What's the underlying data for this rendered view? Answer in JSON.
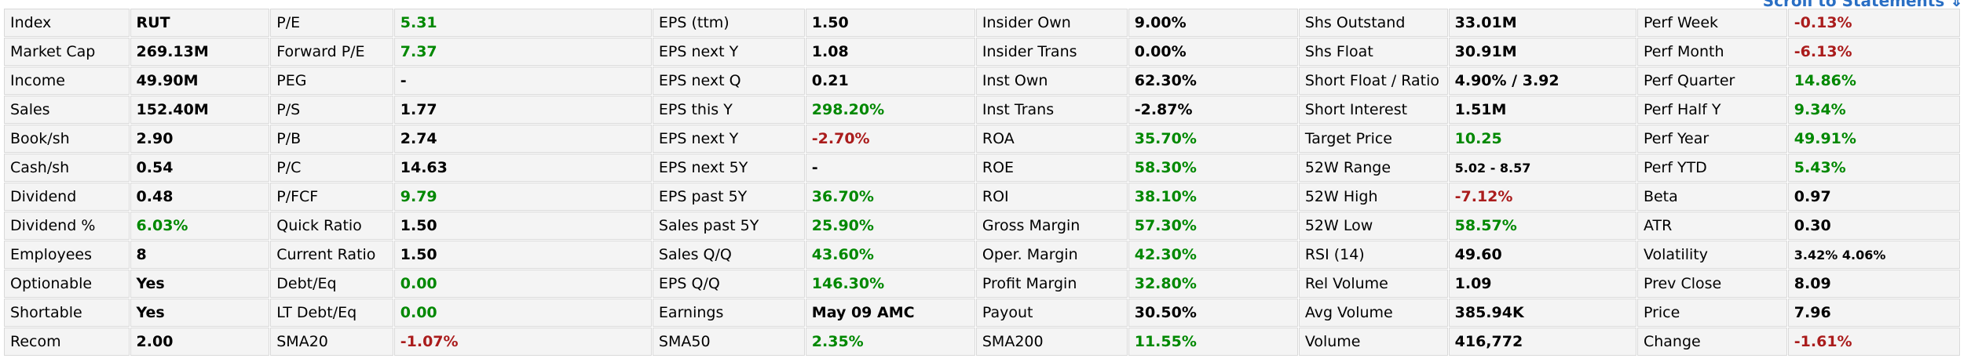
{
  "colors": {
    "default": "#000000",
    "green": "#008800",
    "red": "#aa1c1c",
    "link": "#2a6fc4"
  },
  "header": {
    "scroll_link_label": "Scroll to Statements",
    "scroll_link_icon": "⇓"
  },
  "snapshot_table": {
    "rows": [
      [
        {
          "label": "Index",
          "value": "RUT",
          "color": "default"
        },
        {
          "label": "P/E",
          "value": "5.31",
          "color": "green"
        },
        {
          "label": "EPS (ttm)",
          "value": "1.50",
          "color": "default"
        },
        {
          "label": "Insider Own",
          "value": "9.00%",
          "color": "default"
        },
        {
          "label": "Shs Outstand",
          "value": "33.01M",
          "color": "default"
        },
        {
          "label": "Perf Week",
          "value": "-0.13%",
          "color": "red"
        }
      ],
      [
        {
          "label": "Market Cap",
          "value": "269.13M",
          "color": "default"
        },
        {
          "label": "Forward P/E",
          "value": "7.37",
          "color": "green"
        },
        {
          "label": "EPS next Y",
          "value": "1.08",
          "color": "default"
        },
        {
          "label": "Insider Trans",
          "value": "0.00%",
          "color": "default"
        },
        {
          "label": "Shs Float",
          "value": "30.91M",
          "color": "default"
        },
        {
          "label": "Perf Month",
          "value": "-6.13%",
          "color": "red"
        }
      ],
      [
        {
          "label": "Income",
          "value": "49.90M",
          "color": "default"
        },
        {
          "label": "PEG",
          "value": "-",
          "color": "default"
        },
        {
          "label": "EPS next Q",
          "value": "0.21",
          "color": "default"
        },
        {
          "label": "Inst Own",
          "value": "62.30%",
          "color": "default"
        },
        {
          "label": "Short Float / Ratio",
          "value": "4.90% / 3.92",
          "color": "default"
        },
        {
          "label": "Perf Quarter",
          "value": "14.86%",
          "color": "green"
        }
      ],
      [
        {
          "label": "Sales",
          "value": "152.40M",
          "color": "default"
        },
        {
          "label": "P/S",
          "value": "1.77",
          "color": "default"
        },
        {
          "label": "EPS this Y",
          "value": "298.20%",
          "color": "green"
        },
        {
          "label": "Inst Trans",
          "value": "-2.87%",
          "color": "default"
        },
        {
          "label": "Short Interest",
          "value": "1.51M",
          "color": "default"
        },
        {
          "label": "Perf Half Y",
          "value": "9.34%",
          "color": "green"
        }
      ],
      [
        {
          "label": "Book/sh",
          "value": "2.90",
          "color": "default"
        },
        {
          "label": "P/B",
          "value": "2.74",
          "color": "default"
        },
        {
          "label": "EPS next Y",
          "value": "-2.70%",
          "color": "red"
        },
        {
          "label": "ROA",
          "value": "35.70%",
          "color": "green"
        },
        {
          "label": "Target Price",
          "value": "10.25",
          "color": "green"
        },
        {
          "label": "Perf Year",
          "value": "49.91%",
          "color": "green"
        }
      ],
      [
        {
          "label": "Cash/sh",
          "value": "0.54",
          "color": "default"
        },
        {
          "label": "P/C",
          "value": "14.63",
          "color": "default"
        },
        {
          "label": "EPS next 5Y",
          "value": "-",
          "color": "default"
        },
        {
          "label": "ROE",
          "value": "58.30%",
          "color": "green"
        },
        {
          "label": "52W Range",
          "value": "5.02 - 8.57",
          "color": "default",
          "small": true
        },
        {
          "label": "Perf YTD",
          "value": "5.43%",
          "color": "green"
        }
      ],
      [
        {
          "label": "Dividend",
          "value": "0.48",
          "color": "default"
        },
        {
          "label": "P/FCF",
          "value": "9.79",
          "color": "green"
        },
        {
          "label": "EPS past 5Y",
          "value": "36.70%",
          "color": "green"
        },
        {
          "label": "ROI",
          "value": "38.10%",
          "color": "green"
        },
        {
          "label": "52W High",
          "value": "-7.12%",
          "color": "red"
        },
        {
          "label": "Beta",
          "value": "0.97",
          "color": "default"
        }
      ],
      [
        {
          "label": "Dividend %",
          "value": "6.03%",
          "color": "green"
        },
        {
          "label": "Quick Ratio",
          "value": "1.50",
          "color": "default"
        },
        {
          "label": "Sales past 5Y",
          "value": "25.90%",
          "color": "green"
        },
        {
          "label": "Gross Margin",
          "value": "57.30%",
          "color": "green"
        },
        {
          "label": "52W Low",
          "value": "58.57%",
          "color": "green"
        },
        {
          "label": "ATR",
          "value": "0.30",
          "color": "default"
        }
      ],
      [
        {
          "label": "Employees",
          "value": "8",
          "color": "default"
        },
        {
          "label": "Current Ratio",
          "value": "1.50",
          "color": "default"
        },
        {
          "label": "Sales Q/Q",
          "value": "43.60%",
          "color": "green"
        },
        {
          "label": "Oper. Margin",
          "value": "42.30%",
          "color": "green"
        },
        {
          "label": "RSI (14)",
          "value": "49.60",
          "color": "default"
        },
        {
          "label": "Volatility",
          "value": "3.42% 4.06%",
          "color": "default",
          "small": true
        }
      ],
      [
        {
          "label": "Optionable",
          "value": "Yes",
          "color": "default"
        },
        {
          "label": "Debt/Eq",
          "value": "0.00",
          "color": "green"
        },
        {
          "label": "EPS Q/Q",
          "value": "146.30%",
          "color": "green"
        },
        {
          "label": "Profit Margin",
          "value": "32.80%",
          "color": "green"
        },
        {
          "label": "Rel Volume",
          "value": "1.09",
          "color": "default"
        },
        {
          "label": "Prev Close",
          "value": "8.09",
          "color": "default"
        }
      ],
      [
        {
          "label": "Shortable",
          "value": "Yes",
          "color": "default"
        },
        {
          "label": "LT Debt/Eq",
          "value": "0.00",
          "color": "green"
        },
        {
          "label": "Earnings",
          "value": "May 09 AMC",
          "color": "default"
        },
        {
          "label": "Payout",
          "value": "30.50%",
          "color": "default"
        },
        {
          "label": "Avg Volume",
          "value": "385.94K",
          "color": "default"
        },
        {
          "label": "Price",
          "value": "7.96",
          "color": "default"
        }
      ],
      [
        {
          "label": "Recom",
          "value": "2.00",
          "color": "default"
        },
        {
          "label": "SMA20",
          "value": "-1.07%",
          "color": "red"
        },
        {
          "label": "SMA50",
          "value": "2.35%",
          "color": "green"
        },
        {
          "label": "SMA200",
          "value": "11.55%",
          "color": "green"
        },
        {
          "label": "Volume",
          "value": "416,772",
          "color": "default"
        },
        {
          "label": "Change",
          "value": "-1.61%",
          "color": "red"
        }
      ]
    ]
  }
}
